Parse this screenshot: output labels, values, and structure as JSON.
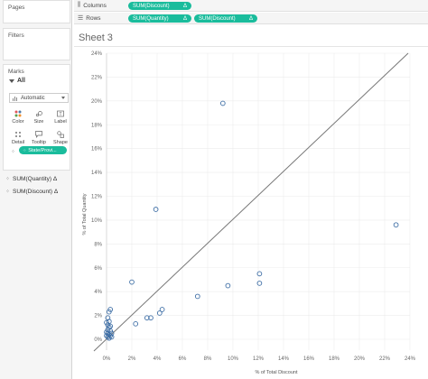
{
  "sidebar": {
    "pages_title": "Pages",
    "filters_title": "Filters",
    "marks_title": "Marks",
    "marks_all": "All",
    "mark_type": "Automatic",
    "buttons": [
      "Color",
      "Size",
      "Label",
      "Detail",
      "Tooltip",
      "Shape"
    ],
    "detail_pill": "State/Provi...",
    "fields": [
      "SUM(Quantity) Δ",
      "SUM(Discount) Δ"
    ]
  },
  "shelves": {
    "columns_label": "Columns",
    "columns_pill": "SUM(Discount)",
    "rows_label": "Rows",
    "rows_pills": [
      "SUM(Quantity)",
      "SUM(Discount)"
    ],
    "delta": "Δ"
  },
  "sheet": {
    "title": "Sheet 3"
  },
  "colors": {
    "accent": "#1abc9c",
    "mark": "#3f6fa6",
    "refline": "#777777"
  },
  "chart_data": {
    "type": "scatter",
    "xlabel": "% of Total Discount",
    "ylabel": "% of Total Quantity",
    "xlim": [
      0,
      24
    ],
    "ylim": [
      0,
      24
    ],
    "x_ticks": [
      "0%",
      "2%",
      "4%",
      "6%",
      "8%",
      "10%",
      "12%",
      "14%",
      "16%",
      "18%",
      "20%",
      "22%",
      "24%"
    ],
    "y_ticks": [
      "0%",
      "2%",
      "4%",
      "6%",
      "8%",
      "10%",
      "12%",
      "14%",
      "16%",
      "18%",
      "20%",
      "22%",
      "24%"
    ],
    "reference_line": "diagonal",
    "points": [
      {
        "x": 9.2,
        "y": 19.8
      },
      {
        "x": 22.9,
        "y": 9.6
      },
      {
        "x": 3.9,
        "y": 10.9
      },
      {
        "x": 2.0,
        "y": 4.8
      },
      {
        "x": 12.1,
        "y": 5.5
      },
      {
        "x": 12.1,
        "y": 4.7
      },
      {
        "x": 9.6,
        "y": 4.5
      },
      {
        "x": 7.2,
        "y": 3.6
      },
      {
        "x": 4.4,
        "y": 2.5
      },
      {
        "x": 4.2,
        "y": 2.2
      },
      {
        "x": 3.5,
        "y": 1.8
      },
      {
        "x": 3.2,
        "y": 1.8
      },
      {
        "x": 2.3,
        "y": 1.3
      },
      {
        "x": 0.3,
        "y": 2.5
      },
      {
        "x": 0.2,
        "y": 2.3
      },
      {
        "x": 0.1,
        "y": 1.8
      },
      {
        "x": 0.2,
        "y": 1.5
      },
      {
        "x": 0.1,
        "y": 1.2
      },
      {
        "x": 0.2,
        "y": 1.0
      },
      {
        "x": 0.1,
        "y": 0.8
      },
      {
        "x": 0.3,
        "y": 0.7
      },
      {
        "x": 0.1,
        "y": 0.5
      },
      {
        "x": 0.2,
        "y": 0.4
      },
      {
        "x": 0.3,
        "y": 0.3
      },
      {
        "x": 0.1,
        "y": 0.2
      },
      {
        "x": 0.2,
        "y": 0.1
      },
      {
        "x": 0.0,
        "y": 0.6
      },
      {
        "x": 0.4,
        "y": 0.5
      },
      {
        "x": 0.0,
        "y": 0.3
      },
      {
        "x": 0.4,
        "y": 0.2
      },
      {
        "x": 0.3,
        "y": 1.1
      },
      {
        "x": 0.0,
        "y": 1.4
      }
    ]
  }
}
